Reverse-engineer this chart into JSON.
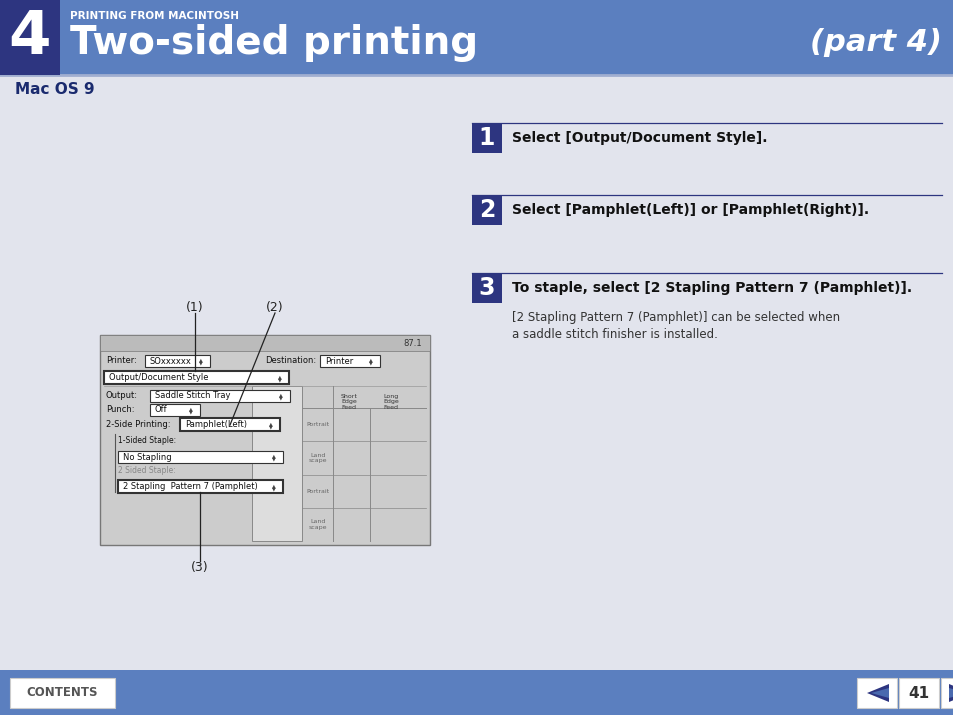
{
  "title_bar_color": "#5b7fbf",
  "title_num_box_color": "#2d3580",
  "title_small": "PRINTING FROM MACINTOSH",
  "title_large": "Two-sided printing",
  "title_part": "(part 4)",
  "section_title": "Mac OS 9",
  "bg_color": "#e2e4ed",
  "step_box_color": "#2d3580",
  "step_text_color": "#ffffff",
  "step_line_color": "#2d3580",
  "step1_num": "1",
  "step1_text": "Select [Output/Document Style].",
  "step2_num": "2",
  "step2_text": "Select [Pamphlet(Left)] or [Pamphlet(Right)].",
  "step3_num": "3",
  "step3_bold": "To staple, select [2 Stapling Pattern 7 (Pamphlet)].",
  "step3_note": "[2 Stapling Pattern 7 (Pamphlet)] can be selected when\na saddle stitch finisher is installed.",
  "footer_color": "#5b7fbf",
  "footer_contents": "CONTENTS",
  "footer_page": "41",
  "label1": "(1)",
  "label2": "(2)",
  "label3": "(3)",
  "dialog_bg": "#cccccc",
  "dialog_inner_bg": "#cccccc",
  "dialog_white": "#ffffff",
  "dialog_border": "#888888"
}
